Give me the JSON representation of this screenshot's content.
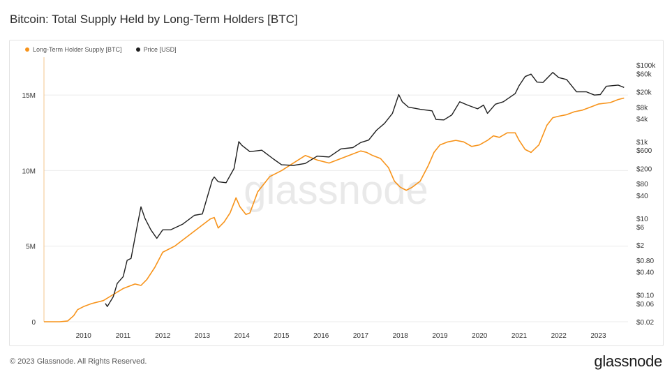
{
  "header": {
    "title": "Bitcoin: Total Supply Held by Long-Term Holders [BTC]"
  },
  "footer": {
    "copyright": "© 2023 Glassnode. All Rights Reserved.",
    "brand": "glassnode"
  },
  "watermark": "glassnode",
  "colors": {
    "lth": "#f7931a",
    "price": "#1f1f1f",
    "grid": "#ebebeb",
    "axis_text": "#333333"
  },
  "chart_data": {
    "type": "line",
    "title": "Bitcoin: Total Supply Held by Long-Term Holders [BTC]",
    "x_ticks": [
      "2010",
      "2011",
      "2012",
      "2013",
      "2014",
      "2015",
      "2016",
      "2017",
      "2018",
      "2019",
      "2020",
      "2021",
      "2022",
      "2023"
    ],
    "x_range": [
      2009.0,
      2023.75
    ],
    "y_left": {
      "ticks": [
        0,
        5000000,
        10000000,
        15000000
      ],
      "tick_labels": [
        "0",
        "5M",
        "10M",
        "15M"
      ],
      "range": [
        0,
        17500000
      ]
    },
    "y_right": {
      "scale": "log",
      "range": [
        0.02,
        160000
      ],
      "ticks": [
        0.02,
        0.06,
        0.1,
        0.4,
        0.8,
        2,
        6,
        10,
        40,
        80,
        200,
        600,
        1000,
        4000,
        8000,
        20000,
        60000,
        100000
      ],
      "tick_labels": [
        "$0.02",
        "$0.06",
        "$0.10",
        "$0.40",
        "$0.80",
        "$2",
        "$6",
        "$10",
        "$40",
        "$80",
        "$200",
        "$600",
        "$1k",
        "$4k",
        "$8k",
        "$20k",
        "$60k",
        "$100k"
      ]
    },
    "legend_position": "top-left",
    "series": [
      {
        "name": "Long-Term Holder Supply [BTC]",
        "axis": "left",
        "points": [
          [
            2009.0,
            0
          ],
          [
            2009.4,
            0
          ],
          [
            2009.6,
            50000
          ],
          [
            2009.75,
            400000
          ],
          [
            2009.85,
            800000
          ],
          [
            2010.0,
            1000000
          ],
          [
            2010.2,
            1200000
          ],
          [
            2010.5,
            1400000
          ],
          [
            2010.75,
            1800000
          ],
          [
            2011.0,
            2200000
          ],
          [
            2011.3,
            2500000
          ],
          [
            2011.45,
            2400000
          ],
          [
            2011.6,
            2800000
          ],
          [
            2011.8,
            3600000
          ],
          [
            2012.0,
            4600000
          ],
          [
            2012.3,
            5000000
          ],
          [
            2012.6,
            5600000
          ],
          [
            2012.9,
            6200000
          ],
          [
            2013.2,
            6800000
          ],
          [
            2013.3,
            6900000
          ],
          [
            2013.4,
            6200000
          ],
          [
            2013.55,
            6600000
          ],
          [
            2013.7,
            7200000
          ],
          [
            2013.85,
            8200000
          ],
          [
            2013.95,
            7600000
          ],
          [
            2014.1,
            7100000
          ],
          [
            2014.2,
            7200000
          ],
          [
            2014.4,
            8600000
          ],
          [
            2014.7,
            9600000
          ],
          [
            2015.0,
            10000000
          ],
          [
            2015.3,
            10500000
          ],
          [
            2015.6,
            11000000
          ],
          [
            2015.9,
            10700000
          ],
          [
            2016.2,
            10500000
          ],
          [
            2016.5,
            10800000
          ],
          [
            2016.8,
            11100000
          ],
          [
            2017.0,
            11300000
          ],
          [
            2017.15,
            11200000
          ],
          [
            2017.3,
            11000000
          ],
          [
            2017.5,
            10800000
          ],
          [
            2017.7,
            10200000
          ],
          [
            2017.85,
            9300000
          ],
          [
            2018.0,
            8900000
          ],
          [
            2018.15,
            8700000
          ],
          [
            2018.3,
            8900000
          ],
          [
            2018.5,
            9300000
          ],
          [
            2018.7,
            10300000
          ],
          [
            2018.85,
            11200000
          ],
          [
            2019.0,
            11700000
          ],
          [
            2019.2,
            11900000
          ],
          [
            2019.4,
            12000000
          ],
          [
            2019.6,
            11900000
          ],
          [
            2019.8,
            11600000
          ],
          [
            2020.0,
            11700000
          ],
          [
            2020.2,
            12000000
          ],
          [
            2020.35,
            12300000
          ],
          [
            2020.5,
            12200000
          ],
          [
            2020.7,
            12500000
          ],
          [
            2020.9,
            12500000
          ],
          [
            2021.0,
            12000000
          ],
          [
            2021.15,
            11400000
          ],
          [
            2021.3,
            11200000
          ],
          [
            2021.5,
            11700000
          ],
          [
            2021.7,
            13000000
          ],
          [
            2021.85,
            13500000
          ],
          [
            2022.0,
            13600000
          ],
          [
            2022.2,
            13700000
          ],
          [
            2022.4,
            13900000
          ],
          [
            2022.6,
            14000000
          ],
          [
            2022.8,
            14200000
          ],
          [
            2023.0,
            14400000
          ],
          [
            2023.3,
            14500000
          ],
          [
            2023.5,
            14700000
          ],
          [
            2023.65,
            14800000
          ]
        ]
      },
      {
        "name": "Price [USD]",
        "axis": "right",
        "points": [
          [
            2010.55,
            0.06
          ],
          [
            2010.6,
            0.05
          ],
          [
            2010.75,
            0.09
          ],
          [
            2010.85,
            0.2
          ],
          [
            2011.0,
            0.3
          ],
          [
            2011.1,
            0.8
          ],
          [
            2011.2,
            0.9
          ],
          [
            2011.35,
            6
          ],
          [
            2011.45,
            20
          ],
          [
            2011.55,
            10
          ],
          [
            2011.7,
            5
          ],
          [
            2011.85,
            3
          ],
          [
            2012.0,
            5
          ],
          [
            2012.2,
            5
          ],
          [
            2012.5,
            7
          ],
          [
            2012.8,
            12
          ],
          [
            2013.0,
            13
          ],
          [
            2013.25,
            100
          ],
          [
            2013.3,
            120
          ],
          [
            2013.4,
            90
          ],
          [
            2013.6,
            85
          ],
          [
            2013.8,
            200
          ],
          [
            2013.92,
            1000
          ],
          [
            2014.0,
            800
          ],
          [
            2014.2,
            550
          ],
          [
            2014.5,
            600
          ],
          [
            2014.8,
            350
          ],
          [
            2015.0,
            250
          ],
          [
            2015.3,
            240
          ],
          [
            2015.6,
            270
          ],
          [
            2015.9,
            420
          ],
          [
            2016.2,
            400
          ],
          [
            2016.5,
            650
          ],
          [
            2016.8,
            700
          ],
          [
            2017.0,
            950
          ],
          [
            2017.2,
            1100
          ],
          [
            2017.4,
            2000
          ],
          [
            2017.6,
            3000
          ],
          [
            2017.8,
            5500
          ],
          [
            2017.96,
            17000
          ],
          [
            2018.05,
            11000
          ],
          [
            2018.2,
            8000
          ],
          [
            2018.5,
            7000
          ],
          [
            2018.8,
            6400
          ],
          [
            2018.9,
            3800
          ],
          [
            2019.1,
            3700
          ],
          [
            2019.3,
            5000
          ],
          [
            2019.5,
            11000
          ],
          [
            2019.7,
            9000
          ],
          [
            2019.95,
            7200
          ],
          [
            2020.1,
            9000
          ],
          [
            2020.2,
            5500
          ],
          [
            2020.4,
            9500
          ],
          [
            2020.6,
            11000
          ],
          [
            2020.9,
            18000
          ],
          [
            2021.0,
            29000
          ],
          [
            2021.15,
            50000
          ],
          [
            2021.3,
            58000
          ],
          [
            2021.45,
            36000
          ],
          [
            2021.6,
            35000
          ],
          [
            2021.85,
            64000
          ],
          [
            2022.0,
            47000
          ],
          [
            2022.2,
            42000
          ],
          [
            2022.45,
            20000
          ],
          [
            2022.7,
            20000
          ],
          [
            2022.9,
            16500
          ],
          [
            2023.05,
            17000
          ],
          [
            2023.2,
            28000
          ],
          [
            2023.5,
            30000
          ],
          [
            2023.65,
            26000
          ]
        ]
      }
    ]
  }
}
